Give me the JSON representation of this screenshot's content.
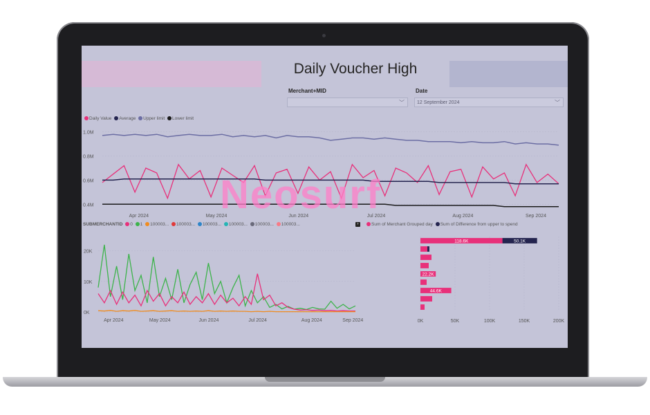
{
  "dashboard": {
    "title": "Daily Voucher High"
  },
  "slicers": {
    "merchant": {
      "label": "Merchant+MID",
      "value": ""
    },
    "date": {
      "label": "Date",
      "value": "12 September 2024"
    }
  },
  "colors": {
    "pink": "#e8307a",
    "navy": "#24244f",
    "slate": "#6b6da3",
    "black": "#1a1a1a",
    "green": "#3cb34a",
    "orange": "#f08c1f",
    "red": "#e03a3a",
    "blue": "#2f85c8",
    "teal": "#26b5b5",
    "gray": "#6a6a7a",
    "salmon": "#f77b87"
  },
  "watermark": {
    "text": "Neosurf"
  },
  "top_chart": {
    "legend": [
      {
        "label": "Daily Value",
        "color": "#e8307a"
      },
      {
        "label": "Average",
        "color": "#24244f"
      },
      {
        "label": "Upper limit",
        "color": "#6b6da3"
      },
      {
        "label": "Lower limit",
        "color": "#1a1a1a"
      }
    ]
  },
  "bottom_left_legend": {
    "title": "SUBMERCHANTID",
    "items": [
      {
        "label": "0",
        "color": "#e8307a"
      },
      {
        "label": "1",
        "color": "#3cb34a"
      },
      {
        "label": "100003...",
        "color": "#f08c1f"
      },
      {
        "label": "100003...",
        "color": "#e03a3a"
      },
      {
        "label": "100003...",
        "color": "#2f85c8"
      },
      {
        "label": "100003...",
        "color": "#26b5b5"
      },
      {
        "label": "100003...",
        "color": "#6a6a7a"
      },
      {
        "label": "100003...",
        "color": "#f77b87"
      }
    ],
    "more_icon": "chevron-right-icon"
  },
  "bottom_right_legend": {
    "items": [
      {
        "label": "Sum of Merchant Grouped day",
        "color": "#e8307a"
      },
      {
        "label": "Sum of Difference from upper to spend",
        "color": "#24244f"
      }
    ]
  },
  "chart_data": [
    {
      "type": "line",
      "x_tick_labels": [
        "Apr 2024",
        "May 2024",
        "Jun 2024",
        "Jul 2024",
        "Aug 2024",
        "Sep 2024"
      ],
      "y_tick_labels": [
        "1.0M",
        "0.8M",
        "0.6M",
        "0.4M"
      ],
      "ylim": [
        0.35,
        1.05
      ],
      "series": [
        {
          "name": "Upper limit",
          "values": [
            0.97,
            0.98,
            0.97,
            0.98,
            0.97,
            0.98,
            0.96,
            0.97,
            0.98,
            0.97,
            0.97,
            0.98,
            0.96,
            0.97,
            0.96,
            0.97,
            0.95,
            0.97,
            0.96,
            0.96,
            0.95,
            0.93,
            0.94,
            0.95,
            0.95,
            0.94,
            0.95,
            0.94,
            0.93,
            0.93,
            0.92,
            0.92,
            0.92,
            0.91,
            0.92,
            0.91,
            0.91,
            0.92,
            0.9,
            0.91,
            0.9,
            0.9,
            0.89
          ]
        },
        {
          "name": "Daily Value",
          "values": [
            0.58,
            0.65,
            0.72,
            0.5,
            0.7,
            0.66,
            0.45,
            0.73,
            0.61,
            0.68,
            0.46,
            0.7,
            0.64,
            0.58,
            0.72,
            0.47,
            0.66,
            0.69,
            0.49,
            0.71,
            0.6,
            0.67,
            0.45,
            0.73,
            0.62,
            0.68,
            0.47,
            0.7,
            0.66,
            0.58,
            0.72,
            0.48,
            0.67,
            0.69,
            0.46,
            0.71,
            0.61,
            0.66,
            0.47,
            0.73,
            0.58,
            0.65,
            0.57
          ]
        },
        {
          "name": "Average",
          "values": [
            0.6,
            0.6,
            0.61,
            0.61,
            0.61,
            0.61,
            0.61,
            0.61,
            0.61,
            0.61,
            0.61,
            0.61,
            0.61,
            0.61,
            0.61,
            0.6,
            0.6,
            0.6,
            0.6,
            0.6,
            0.6,
            0.6,
            0.6,
            0.6,
            0.6,
            0.59,
            0.59,
            0.59,
            0.59,
            0.59,
            0.59,
            0.58,
            0.58,
            0.58,
            0.58,
            0.58,
            0.58,
            0.58,
            0.57,
            0.57,
            0.57,
            0.57,
            0.57
          ]
        },
        {
          "name": "Lower limit",
          "values": [
            0.4,
            0.4,
            0.4,
            0.4,
            0.4,
            0.4,
            0.4,
            0.4,
            0.4,
            0.4,
            0.4,
            0.4,
            0.4,
            0.4,
            0.4,
            0.4,
            0.4,
            0.4,
            0.4,
            0.4,
            0.4,
            0.4,
            0.4,
            0.4,
            0.4,
            0.4,
            0.4,
            0.39,
            0.39,
            0.39,
            0.39,
            0.39,
            0.39,
            0.39,
            0.39,
            0.39,
            0.39,
            0.38,
            0.38,
            0.38,
            0.38,
            0.38,
            0.38
          ]
        }
      ]
    },
    {
      "type": "line",
      "x_tick_labels": [
        "Apr 2024",
        "May 2024",
        "Jun 2024",
        "Jul 2024",
        "Aug 2024",
        "Sep 2024"
      ],
      "y_tick_labels": [
        "20K",
        "10K",
        "0K"
      ],
      "ylim": [
        0,
        24000
      ],
      "series": [
        {
          "name": "1",
          "values": [
            8000,
            22000,
            5000,
            15000,
            4000,
            19000,
            7000,
            12000,
            3000,
            18000,
            5000,
            11000,
            4000,
            14000,
            3000,
            9000,
            13000,
            4000,
            16000,
            6000,
            10000,
            3000,
            8000,
            12000,
            2000,
            7000,
            3000,
            5000,
            1500,
            2500,
            1000,
            1800,
            900,
            1200,
            800,
            1500,
            1000,
            900,
            3500,
            1200,
            2500,
            1000,
            2000
          ]
        },
        {
          "name": "0",
          "values": [
            6000,
            3000,
            7000,
            2500,
            6500,
            3000,
            5500,
            2000,
            7000,
            3500,
            6000,
            2000,
            5000,
            3000,
            6500,
            2500,
            5000,
            3000,
            6000,
            2500,
            5500,
            3000,
            4500,
            2000,
            5000,
            2500,
            12500,
            4000,
            5500,
            2000,
            3000,
            1500,
            900,
            600,
            700,
            500,
            600,
            400,
            500,
            300,
            400,
            300,
            300
          ]
        },
        {
          "name": "100003...",
          "values": [
            400,
            300,
            500,
            200,
            400,
            300,
            500,
            200,
            300,
            400,
            200,
            300,
            400,
            200,
            300,
            200,
            300,
            200,
            400,
            200,
            300,
            200,
            300,
            200,
            200,
            100,
            200,
            100,
            200,
            100,
            100,
            100,
            100,
            100,
            100,
            100,
            100,
            100,
            100,
            100,
            100,
            100,
            100
          ]
        }
      ]
    },
    {
      "type": "bar",
      "orientation": "horizontal",
      "x_tick_labels": [
        "0K",
        "50K",
        "100K",
        "150K",
        "200K"
      ],
      "xlim": [
        0,
        200000
      ],
      "series": [
        {
          "name": "Sum of Merchant Grouped day",
          "values": [
            118600,
            10000,
            16000,
            12000,
            22200,
            9000,
            44600,
            17000,
            6000
          ]
        },
        {
          "name": "Sum of Difference from upper to spend",
          "values": [
            50100,
            3000,
            0,
            0,
            0,
            0,
            0,
            0,
            0
          ]
        }
      ],
      "data_labels": [
        "118.6K",
        "50.1K",
        "22.2K",
        "44.6K"
      ]
    }
  ]
}
